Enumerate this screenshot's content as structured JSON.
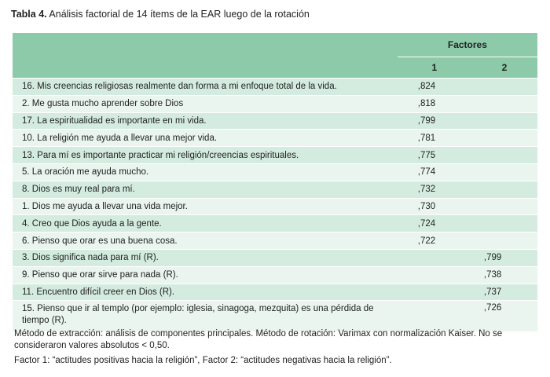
{
  "caption": {
    "label": "Tabla 4.",
    "text": " Análisis factorial de 14 ítems de la EAR luego de la rotación"
  },
  "table": {
    "header_group": "Factores",
    "factor_labels": [
      "1",
      "2"
    ],
    "rows": [
      {
        "item": "16. Mis creencias religiosas realmente dan forma a mi enfoque total de la vida.",
        "f1": ",824",
        "f2": ""
      },
      {
        "item": "2. Me gusta mucho aprender sobre Dios",
        "f1": ",818",
        "f2": ""
      },
      {
        "item": "17. La espiritualidad es importante en mi vida.",
        "f1": ",799",
        "f2": ""
      },
      {
        "item": "10. La religión me ayuda a llevar una mejor vida.",
        "f1": ",781",
        "f2": ""
      },
      {
        "item": "13. Para mí es importante practicar mi religión/creencias espirituales.",
        "f1": ",775",
        "f2": ""
      },
      {
        "item": "5. La oración me ayuda mucho.",
        "f1": ",774",
        "f2": ""
      },
      {
        "item": "8. Dios es muy real para mí.",
        "f1": ",732",
        "f2": ""
      },
      {
        "item": "1. Dios me ayuda a llevar una vida mejor.",
        "f1": ",730",
        "f2": ""
      },
      {
        "item": "4. Creo que Dios ayuda a la gente.",
        "f1": ",724",
        "f2": ""
      },
      {
        "item": "6. Pienso que orar es una buena cosa.",
        "f1": ",722",
        "f2": ""
      },
      {
        "item": "3. Dios significa nada para mí (R).",
        "f1": "",
        "f2": ",799"
      },
      {
        "item": "9. Pienso que orar sirve para nada (R).",
        "f1": "",
        "f2": ",738"
      },
      {
        "item": "11. Encuentro difícil creer en Dios (R).",
        "f1": "",
        "f2": ",737"
      },
      {
        "item": "15. Pienso que ir al templo (por ejemplo: iglesia, sinagoga, mezquita) es una pérdida de tiempo (R).",
        "f1": "",
        "f2": ",726"
      }
    ]
  },
  "notes": {
    "method": "Método de extracción: análisis de componentes principales. Método de rotación: Varimax con normalización Kaiser. No se consideraron valores absolutos < 0,50.",
    "factors": "Factor 1: “actitudes positivas hacia la religión”, Factor 2: “actitudes negativas hacia la religión”."
  }
}
